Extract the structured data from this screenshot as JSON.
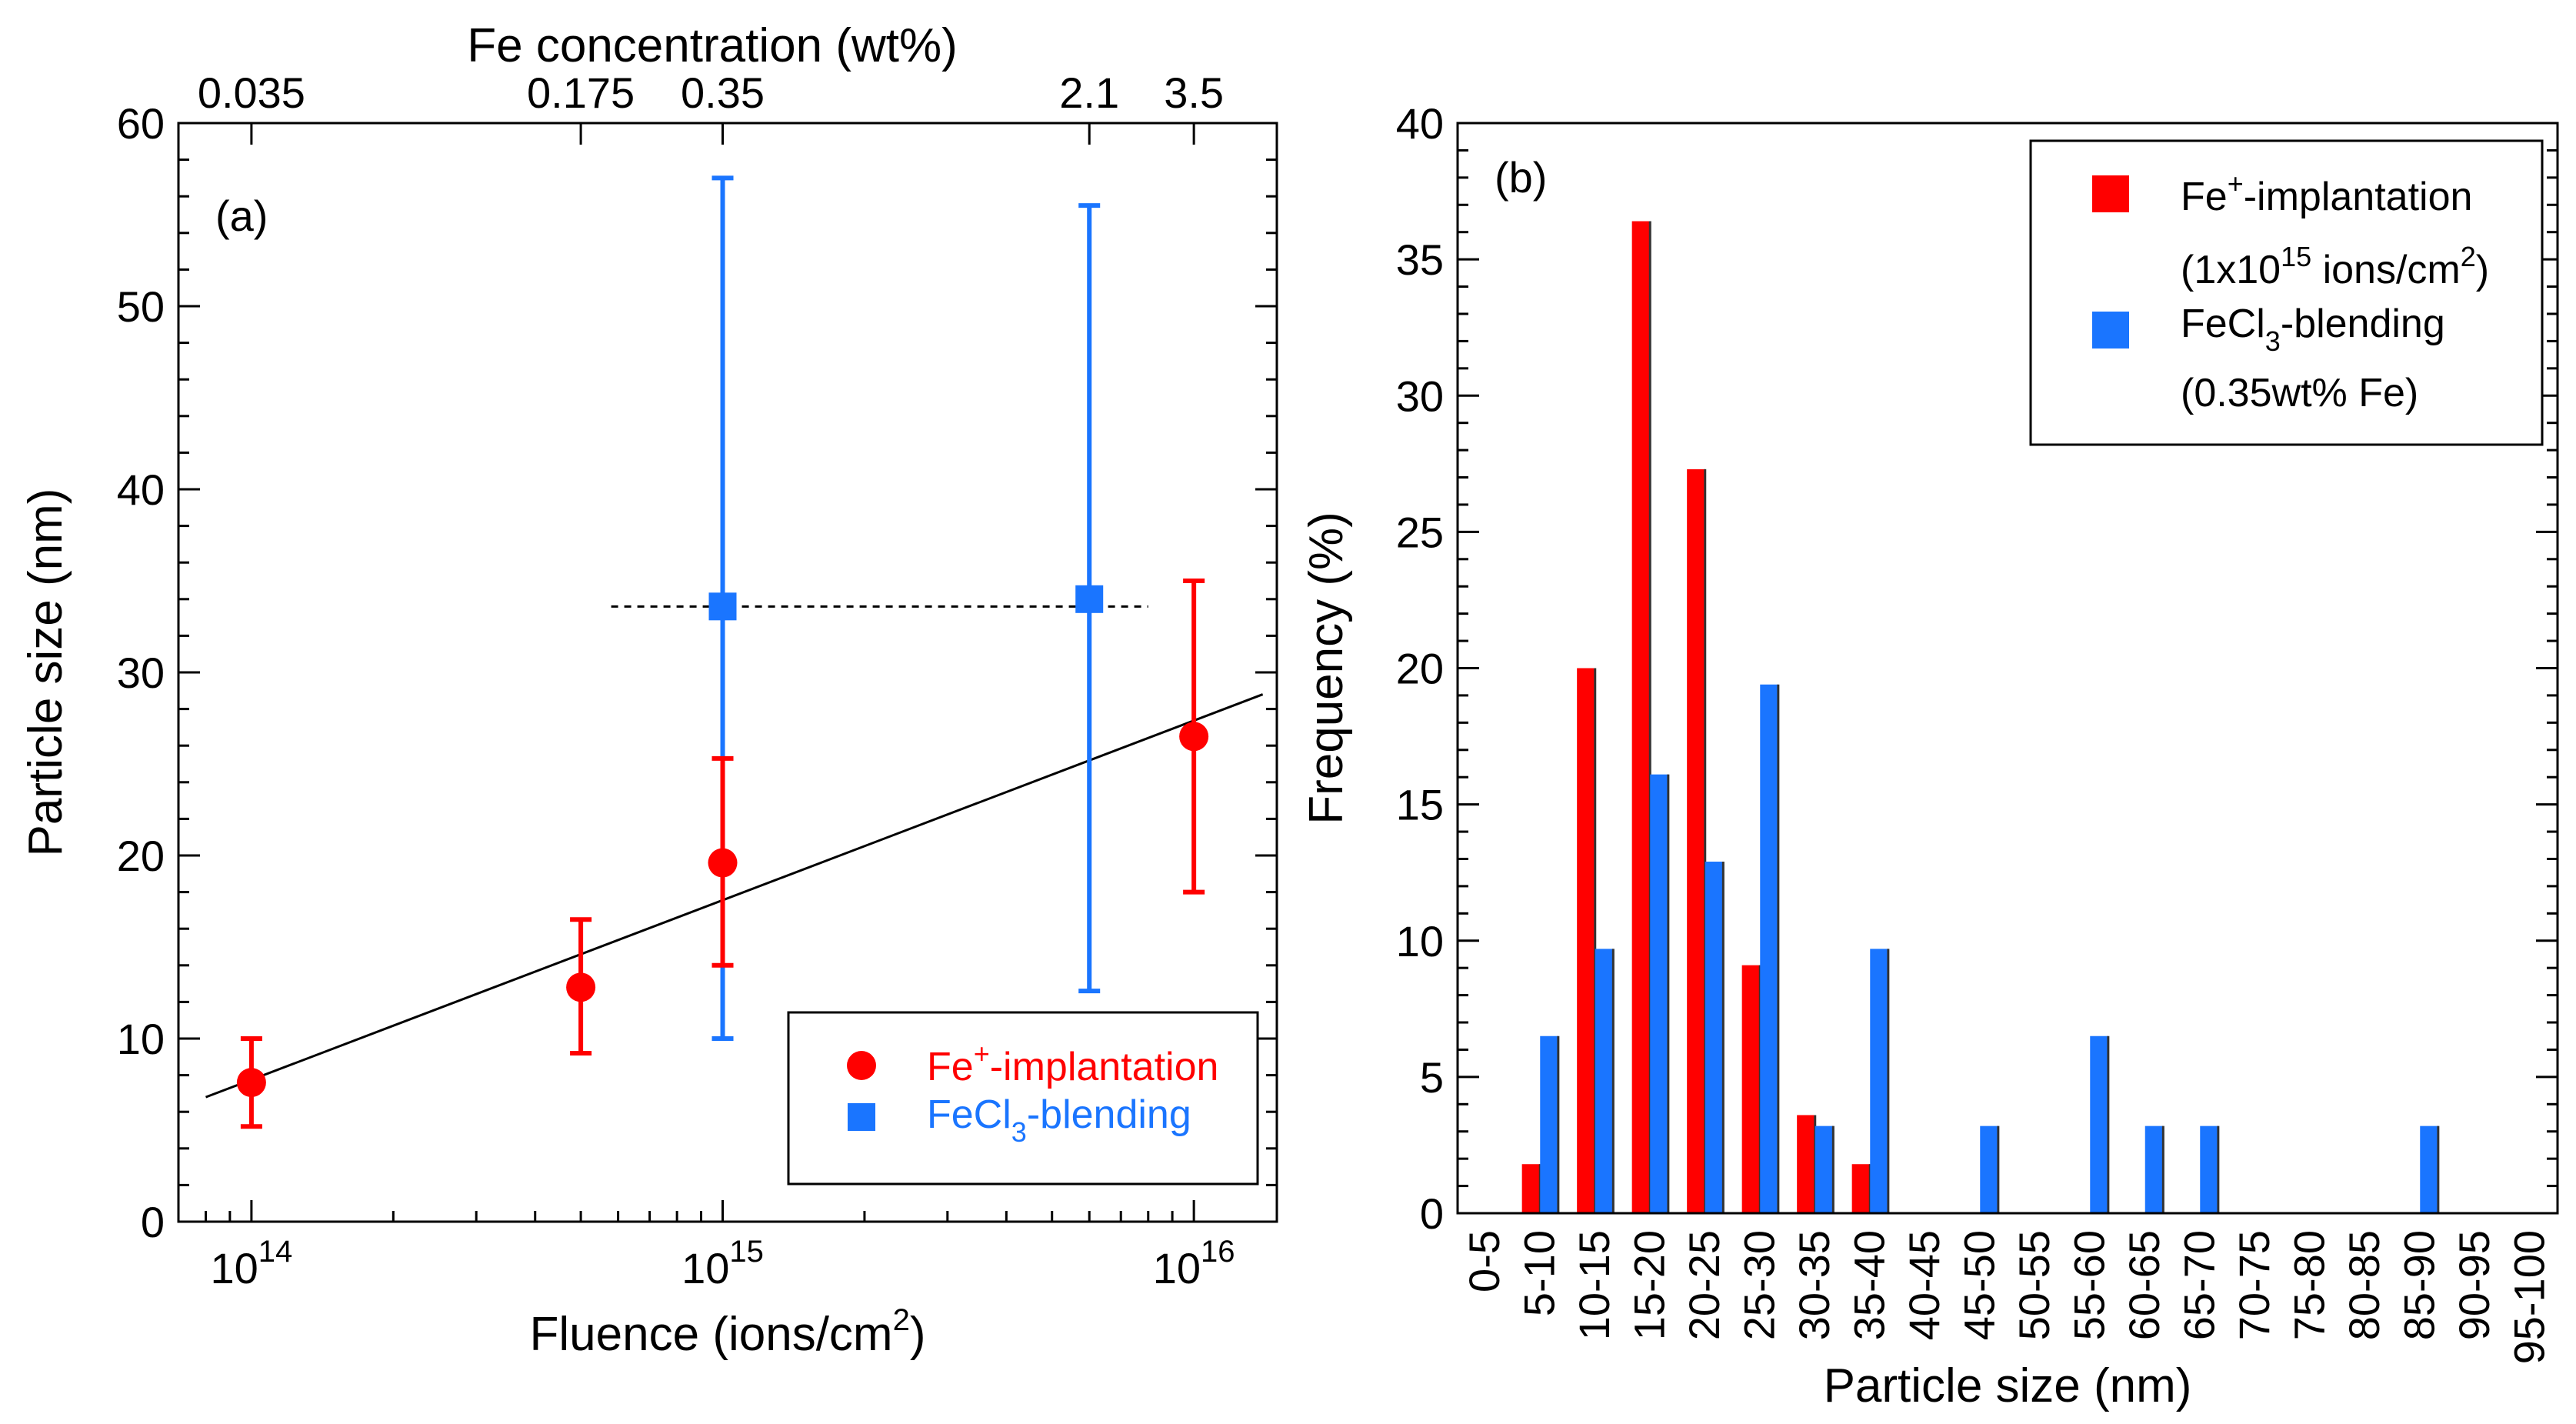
{
  "chart_data": [
    {
      "id": "a",
      "panel_label": "(a)",
      "type": "scatter",
      "xscale": "log",
      "xlabel": "Fluence (ions/cm",
      "xlabel_sup": "2",
      "xlabel_end": ")",
      "ylabel": "Particle size (nm)",
      "xlim": [
        70000000000000.0,
        1.5e+16
      ],
      "ylim": [
        0,
        60
      ],
      "yticks": [
        0,
        10,
        20,
        30,
        40,
        50,
        60
      ],
      "xticks_major": [
        {
          "value": 100000000000000.0,
          "base": "10",
          "exp": "14"
        },
        {
          "value": 1000000000000000.0,
          "base": "10",
          "exp": "15"
        },
        {
          "value": 1e+16,
          "base": "10",
          "exp": "16"
        }
      ],
      "top_axis": {
        "label": "Fe concentration (wt%)",
        "ticks": [
          {
            "at": 100000000000000.0,
            "label": "0.035"
          },
          {
            "at": 500000000000000.0,
            "label": "0.175"
          },
          {
            "at": 1000000000000000.0,
            "label": "0.35"
          },
          {
            "at": 6000000000000000.0,
            "label": "2.1"
          },
          {
            "at": 1e+16,
            "label": "3.5"
          }
        ]
      },
      "series": [
        {
          "name_main": "Fe",
          "name_sup": "+",
          "name_rest": "-implantation",
          "color": "#ff0000",
          "marker": "circle",
          "points": [
            {
              "x": 100000000000000.0,
              "y": 7.6,
              "ylo": 5.2,
              "yhi": 10.0
            },
            {
              "x": 500000000000000.0,
              "y": 12.8,
              "ylo": 9.2,
              "yhi": 16.5
            },
            {
              "x": 1000000000000000.0,
              "y": 19.6,
              "ylo": 14.0,
              "yhi": 25.3
            },
            {
              "x": 1e+16,
              "y": 26.5,
              "ylo": 18.0,
              "yhi": 35.0
            }
          ]
        },
        {
          "name_main": "FeCl",
          "name_sub": "3",
          "name_rest": "-blending",
          "color": "#1a75ff",
          "marker": "square",
          "points": [
            {
              "x": 1000000000000000.0,
              "y": 33.6,
              "ylo": 10.0,
              "yhi": 57.0
            },
            {
              "x": 6000000000000000.0,
              "y": 34.0,
              "ylo": 12.6,
              "yhi": 55.5
            }
          ]
        }
      ],
      "fit_line": {
        "x": [
          80000000000000.0,
          1.4e+16
        ],
        "y": [
          6.8,
          28.8
        ]
      },
      "dashed_line": {
        "x": [
          580000000000000.0,
          8000000000000000.0
        ],
        "y": 33.6
      }
    },
    {
      "id": "b",
      "panel_label": "(b)",
      "type": "bar",
      "xlabel": "Particle size (nm)",
      "ylabel": "Frequency (%)",
      "ylim": [
        0,
        40
      ],
      "yticks": [
        0,
        5,
        10,
        15,
        20,
        25,
        30,
        35,
        40
      ],
      "categories": [
        "0-5",
        "5-10",
        "10-15",
        "15-20",
        "20-25",
        "25-30",
        "30-35",
        "35-40",
        "40-45",
        "45-50",
        "50-55",
        "55-60",
        "60-65",
        "65-70",
        "70-75",
        "75-80",
        "80-85",
        "85-90",
        "90-95",
        "95-100"
      ],
      "series": [
        {
          "name_main": "Fe",
          "name_sup": "+",
          "name_rest": "-implantation",
          "note_pre": "(1x10",
          "note_sup": "15",
          "note_mid": " ions/cm",
          "note_sup2": "2",
          "note_end": ")",
          "color": "#ff0000",
          "values": [
            0,
            1.8,
            20.0,
            36.4,
            27.3,
            9.1,
            3.6,
            1.8,
            0,
            0,
            0,
            0,
            0,
            0,
            0,
            0,
            0,
            0,
            0,
            0
          ]
        },
        {
          "name_main": "FeCl",
          "name_sub": "3",
          "name_rest": "-blending",
          "note": "(0.35wt% Fe)",
          "color": "#1a75ff",
          "values": [
            0,
            6.5,
            9.7,
            16.1,
            12.9,
            19.4,
            3.2,
            9.7,
            0,
            3.2,
            0,
            6.5,
            3.2,
            3.2,
            0,
            0,
            0,
            3.2,
            0,
            0
          ]
        }
      ]
    }
  ]
}
